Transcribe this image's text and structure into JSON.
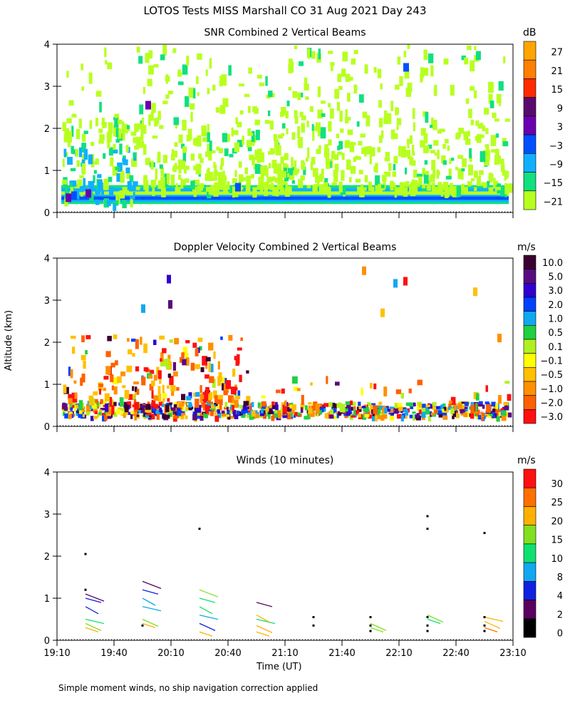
{
  "page": {
    "title": "LOTOS Tests MISS Marshall CO  31 Aug 2021 Day 243",
    "ylabel": "Altitude (km)",
    "xlabel": "Time (UT)",
    "footnote": "Simple moment winds, no ship navigation correction applied"
  },
  "chart_data": [
    {
      "type": "heatmap",
      "title": "SNR Combined 2 Vertical Beams",
      "units": "dB",
      "ylim": [
        0,
        4
      ],
      "yticks": [
        "0",
        "1",
        "2",
        "3",
        "4"
      ],
      "colorbar_labels": [
        "27",
        "21",
        "15",
        "9",
        "3",
        "−3",
        "−9",
        "−15",
        "−21"
      ],
      "colors": [
        "#ffa500",
        "#ff7f00",
        "#ff2a00",
        "#5a0a6e",
        "#6a00b0",
        "#0050ff",
        "#10b0ff",
        "#10e080",
        "#b8ff20"
      ]
    },
    {
      "type": "heatmap",
      "title": "Doppler Velocity Combined 2 Vertical Beams",
      "units": "m/s",
      "ylim": [
        0,
        4
      ],
      "yticks": [
        "0",
        "1",
        "2",
        "3",
        "4"
      ],
      "colorbar_labels": [
        "10.0",
        "5.0",
        "3.0",
        "2.0",
        "1.0",
        "0.5",
        "0.1",
        "−0.1",
        "−0.5",
        "−1.0",
        "−2.0",
        "−3.0"
      ],
      "colors": [
        "#3a0030",
        "#5a0a80",
        "#3000d0",
        "#0040ff",
        "#10a8f0",
        "#20d040",
        "#b0f020",
        "#ffff00",
        "#ffc000",
        "#ff9000",
        "#ff6000",
        "#ff1010"
      ]
    },
    {
      "type": "scatter",
      "title": "Winds (10 minutes)",
      "units": "m/s",
      "ylim": [
        0,
        4
      ],
      "yticks": [
        "0",
        "1",
        "2",
        "3",
        "4"
      ],
      "xticks": [
        "19:10",
        "19:40",
        "20:10",
        "20:40",
        "21:10",
        "21:40",
        "22:10",
        "22:40",
        "23:10"
      ],
      "xlim_minutes": [
        0,
        240
      ],
      "colorbar_labels": [
        "30",
        "25",
        "20",
        "15",
        "10",
        "8",
        "4",
        "2",
        "0"
      ],
      "colors": [
        "#ff1010",
        "#ff7000",
        "#ffb000",
        "#80e020",
        "#10e070",
        "#10a8f0",
        "#1020e0",
        "#5a0060",
        "#000000"
      ],
      "points": [
        {
          "t": 15,
          "alt": 2.05
        },
        {
          "t": 15,
          "alt": 1.2
        },
        {
          "t": 45,
          "alt": 0.35
        },
        {
          "t": 75,
          "alt": 2.65
        },
        {
          "t": 135,
          "alt": 0.55
        },
        {
          "t": 135,
          "alt": 0.35
        },
        {
          "t": 165,
          "alt": 0.55
        },
        {
          "t": 165,
          "alt": 0.35
        },
        {
          "t": 165,
          "alt": 0.22
        },
        {
          "t": 195,
          "alt": 2.95
        },
        {
          "t": 195,
          "alt": 2.65
        },
        {
          "t": 195,
          "alt": 0.55
        },
        {
          "t": 195,
          "alt": 0.35
        },
        {
          "t": 195,
          "alt": 0.22
        },
        {
          "t": 225,
          "alt": 2.55
        },
        {
          "t": 225,
          "alt": 0.55
        },
        {
          "t": 225,
          "alt": 0.35
        },
        {
          "t": 225,
          "alt": 0.22
        }
      ]
    }
  ]
}
